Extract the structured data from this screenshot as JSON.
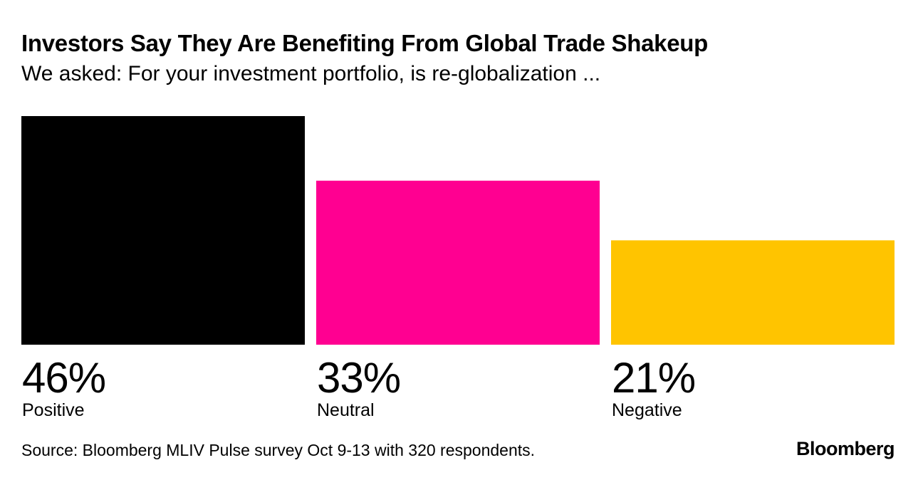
{
  "chart_data": {
    "type": "bar",
    "title": "Investors Say They Are Benefiting From Global Trade Shakeup",
    "subtitle": "We asked: For your investment portfolio, is re-globalization ...",
    "categories": [
      "Positive",
      "Neutral",
      "Negative"
    ],
    "values": [
      46,
      33,
      21
    ],
    "value_labels": [
      "46%",
      "33%",
      "21%"
    ],
    "colors": [
      "#000000",
      "#FF0091",
      "#FFC400"
    ],
    "unit": "%",
    "grid": false,
    "ylim": [
      0,
      46
    ]
  },
  "footer": {
    "source": "Source: Bloomberg MLIV Pulse survey Oct 9-13 with 320 respondents.",
    "logo": "Bloomberg"
  }
}
